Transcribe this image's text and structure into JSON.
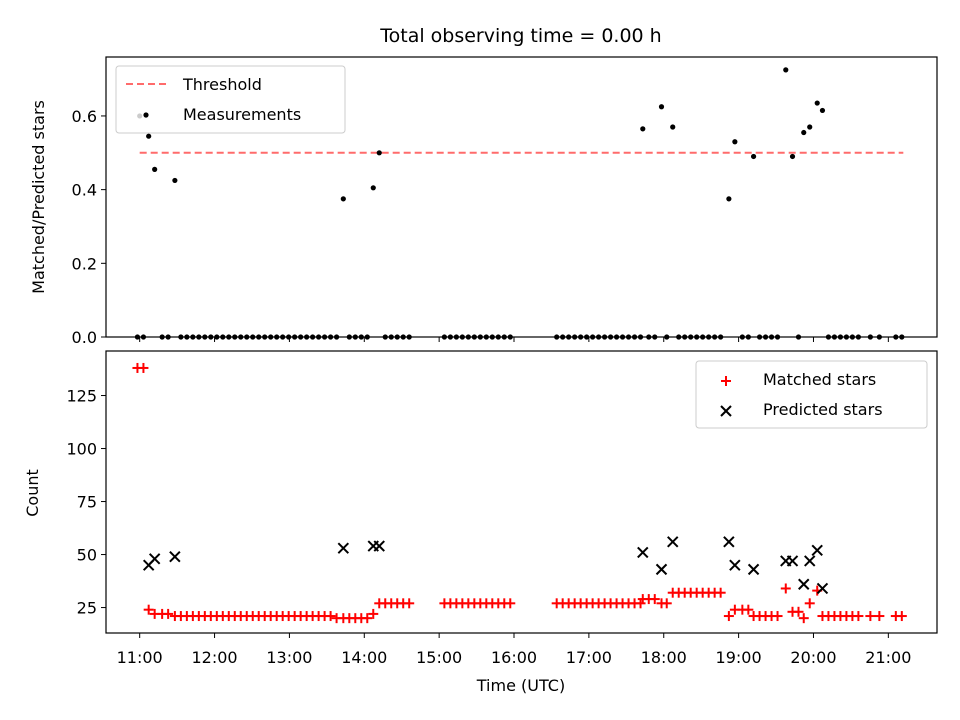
{
  "title": "Total observing time = 0.00 h",
  "top_panel": {
    "ylabel": "Matched/Predicted stars",
    "ylim": [
      0,
      0.76
    ],
    "yticks": [
      0.0,
      0.2,
      0.4,
      0.6
    ],
    "ytick_labels": [
      "0.0",
      "0.2",
      "0.4",
      "0.6"
    ],
    "legend": {
      "threshold_label": "Threshold",
      "measurements_label": "Measurements",
      "placement": "upper-left"
    },
    "threshold": {
      "value": 0.5,
      "x_start": 11.0,
      "x_end": 21.2
    }
  },
  "bottom_panel": {
    "ylabel": "Count",
    "ylim": [
      13,
      146
    ],
    "yticks": [
      25,
      50,
      75,
      100,
      125
    ],
    "ytick_labels": [
      "25",
      "50",
      "75",
      "100",
      "125"
    ],
    "legend": {
      "matched_label": "Matched stars",
      "predicted_label": "Predicted stars",
      "placement": "upper-right"
    }
  },
  "xaxis": {
    "label": "Time (UTC)",
    "xlim": [
      10.55,
      21.65
    ],
    "ticks": [
      11,
      12,
      13,
      14,
      15,
      16,
      17,
      18,
      19,
      20,
      21
    ],
    "tick_labels": [
      "11:00",
      "12:00",
      "13:00",
      "14:00",
      "15:00",
      "16:00",
      "17:00",
      "18:00",
      "19:00",
      "20:00",
      "21:00"
    ]
  },
  "colors": {
    "threshold": "#ff6b6b",
    "matched": "#ff0000",
    "predicted": "#000000",
    "measurements": "#000000"
  },
  "chart_data": [
    {
      "type": "scatter",
      "title": "Total observing time = 0.00 h",
      "ylabel": "Matched/Predicted stars",
      "series": [
        {
          "name": "Measurements",
          "points": [
            [
              11.0,
              0.6
            ],
            [
              11.12,
              0.545
            ],
            [
              11.2,
              0.455
            ],
            [
              11.47,
              0.425
            ],
            [
              13.72,
              0.375
            ],
            [
              14.12,
              0.405
            ],
            [
              14.2,
              0.5
            ],
            [
              17.72,
              0.565
            ],
            [
              17.97,
              0.625
            ],
            [
              18.12,
              0.57
            ],
            [
              18.87,
              0.375
            ],
            [
              18.95,
              0.53
            ],
            [
              19.2,
              0.49
            ],
            [
              19.63,
              0.725
            ],
            [
              19.72,
              0.49
            ],
            [
              19.87,
              0.555
            ],
            [
              19.95,
              0.57
            ],
            [
              20.05,
              0.635
            ],
            [
              20.12,
              0.615
            ]
          ],
          "zero_times": [
            10.97,
            11.05,
            11.3,
            11.38,
            11.55,
            11.63,
            11.71,
            11.79,
            11.87,
            11.95,
            12.03,
            12.11,
            12.19,
            12.27,
            12.35,
            12.43,
            12.51,
            12.59,
            12.67,
            12.75,
            12.83,
            12.91,
            12.99,
            13.07,
            13.15,
            13.23,
            13.31,
            13.39,
            13.47,
            13.55,
            13.63,
            13.8,
            13.88,
            13.96,
            14.04,
            14.28,
            14.36,
            14.44,
            14.52,
            14.6,
            15.07,
            15.15,
            15.23,
            15.31,
            15.39,
            15.47,
            15.55,
            15.63,
            15.71,
            15.79,
            15.87,
            15.95,
            16.57,
            16.65,
            16.73,
            16.81,
            16.89,
            16.97,
            17.05,
            17.13,
            17.21,
            17.29,
            17.37,
            17.45,
            17.53,
            17.61,
            17.69,
            17.8,
            17.88,
            18.04,
            18.2,
            18.28,
            18.36,
            18.44,
            18.52,
            18.6,
            18.68,
            18.76,
            19.05,
            19.13,
            19.28,
            19.36,
            19.44,
            19.52,
            19.8,
            20.2,
            20.28,
            20.36,
            20.44,
            20.52,
            20.6,
            20.76,
            20.88,
            21.1,
            21.18
          ]
        },
        {
          "name": "Threshold",
          "x": [
            11.0,
            21.2
          ],
          "y": [
            0.5,
            0.5
          ]
        }
      ]
    },
    {
      "type": "scatter",
      "xlabel": "Time (UTC)",
      "ylabel": "Count",
      "series": [
        {
          "name": "Matched stars",
          "points": [
            [
              10.97,
              138
            ],
            [
              11.05,
              138
            ],
            [
              11.12,
              24
            ],
            [
              11.2,
              22
            ],
            [
              11.3,
              22
            ],
            [
              11.38,
              22
            ],
            [
              11.47,
              21
            ],
            [
              11.55,
              21
            ],
            [
              11.63,
              21
            ],
            [
              11.71,
              21
            ],
            [
              11.79,
              21
            ],
            [
              11.87,
              21
            ],
            [
              11.95,
              21
            ],
            [
              12.03,
              21
            ],
            [
              12.11,
              21
            ],
            [
              12.19,
              21
            ],
            [
              12.27,
              21
            ],
            [
              12.35,
              21
            ],
            [
              12.43,
              21
            ],
            [
              12.51,
              21
            ],
            [
              12.59,
              21
            ],
            [
              12.67,
              21
            ],
            [
              12.75,
              21
            ],
            [
              12.83,
              21
            ],
            [
              12.91,
              21
            ],
            [
              12.99,
              21
            ],
            [
              13.07,
              21
            ],
            [
              13.15,
              21
            ],
            [
              13.23,
              21
            ],
            [
              13.31,
              21
            ],
            [
              13.39,
              21
            ],
            [
              13.47,
              21
            ],
            [
              13.55,
              21
            ],
            [
              13.63,
              20
            ],
            [
              13.72,
              20
            ],
            [
              13.8,
              20
            ],
            [
              13.88,
              20
            ],
            [
              13.96,
              20
            ],
            [
              14.04,
              20
            ],
            [
              14.12,
              22
            ],
            [
              14.2,
              27
            ],
            [
              14.28,
              27
            ],
            [
              14.36,
              27
            ],
            [
              14.44,
              27
            ],
            [
              14.52,
              27
            ],
            [
              14.6,
              27
            ],
            [
              15.07,
              27
            ],
            [
              15.15,
              27
            ],
            [
              15.23,
              27
            ],
            [
              15.31,
              27
            ],
            [
              15.39,
              27
            ],
            [
              15.47,
              27
            ],
            [
              15.55,
              27
            ],
            [
              15.63,
              27
            ],
            [
              15.71,
              27
            ],
            [
              15.79,
              27
            ],
            [
              15.87,
              27
            ],
            [
              15.95,
              27
            ],
            [
              16.57,
              27
            ],
            [
              16.65,
              27
            ],
            [
              16.73,
              27
            ],
            [
              16.81,
              27
            ],
            [
              16.89,
              27
            ],
            [
              16.97,
              27
            ],
            [
              17.05,
              27
            ],
            [
              17.13,
              27
            ],
            [
              17.21,
              27
            ],
            [
              17.29,
              27
            ],
            [
              17.37,
              27
            ],
            [
              17.45,
              27
            ],
            [
              17.53,
              27
            ],
            [
              17.61,
              27
            ],
            [
              17.69,
              27
            ],
            [
              17.72,
              29
            ],
            [
              17.8,
              29
            ],
            [
              17.88,
              29
            ],
            [
              17.97,
              27
            ],
            [
              18.04,
              27
            ],
            [
              18.12,
              32
            ],
            [
              18.2,
              32
            ],
            [
              18.28,
              32
            ],
            [
              18.36,
              32
            ],
            [
              18.44,
              32
            ],
            [
              18.52,
              32
            ],
            [
              18.6,
              32
            ],
            [
              18.68,
              32
            ],
            [
              18.76,
              32
            ],
            [
              18.87,
              21
            ],
            [
              18.95,
              24
            ],
            [
              19.05,
              24
            ],
            [
              19.13,
              24
            ],
            [
              19.2,
              21
            ],
            [
              19.28,
              21
            ],
            [
              19.36,
              21
            ],
            [
              19.44,
              21
            ],
            [
              19.52,
              21
            ],
            [
              19.63,
              34
            ],
            [
              19.72,
              23
            ],
            [
              19.8,
              23
            ],
            [
              19.87,
              20
            ],
            [
              19.95,
              27
            ],
            [
              20.05,
              33
            ],
            [
              20.12,
              21
            ],
            [
              20.2,
              21
            ],
            [
              20.28,
              21
            ],
            [
              20.36,
              21
            ],
            [
              20.44,
              21
            ],
            [
              20.52,
              21
            ],
            [
              20.6,
              21
            ],
            [
              20.76,
              21
            ],
            [
              20.88,
              21
            ],
            [
              21.1,
              21
            ],
            [
              21.18,
              21
            ]
          ]
        },
        {
          "name": "Predicted stars",
          "points": [
            [
              11.12,
              45
            ],
            [
              11.2,
              48
            ],
            [
              11.47,
              49
            ],
            [
              13.72,
              53
            ],
            [
              14.12,
              54
            ],
            [
              14.2,
              54
            ],
            [
              17.72,
              51
            ],
            [
              17.97,
              43
            ],
            [
              18.12,
              56
            ],
            [
              18.87,
              56
            ],
            [
              18.95,
              45
            ],
            [
              19.2,
              43
            ],
            [
              19.63,
              47
            ],
            [
              19.72,
              47
            ],
            [
              19.87,
              36
            ],
            [
              19.95,
              47
            ],
            [
              20.05,
              52
            ],
            [
              20.12,
              34
            ]
          ]
        }
      ]
    }
  ]
}
